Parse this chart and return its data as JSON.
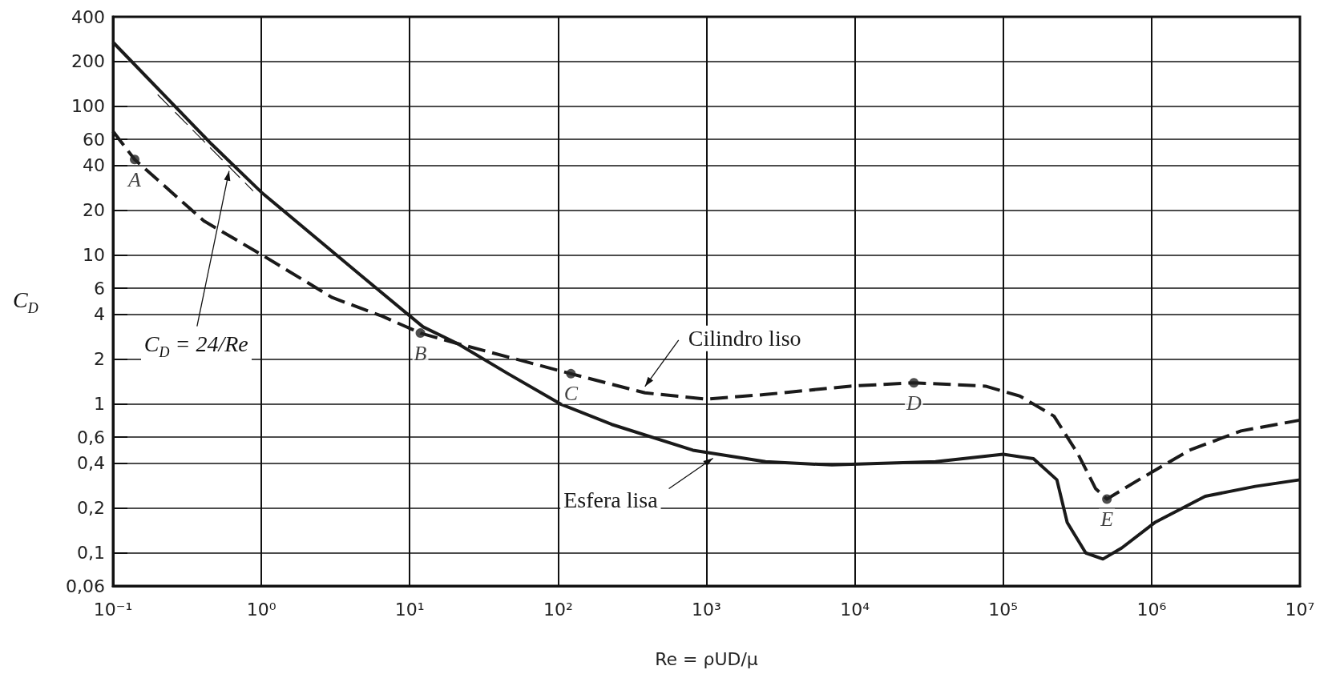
{
  "chart_data": {
    "type": "line",
    "xlabel": "Re = ρUD/μ",
    "ylabel": "C$_{D}$",
    "log": "xy",
    "grid": true,
    "legend": false,
    "marker": "none",
    "xlim": [
      0.1,
      10000000
    ],
    "ylim": [
      0.06,
      400
    ],
    "xticks": [
      {
        "value": 0.1,
        "label": "10⁻¹"
      },
      {
        "value": 1,
        "label": "10⁰"
      },
      {
        "value": 10,
        "label": "10¹"
      },
      {
        "value": 100,
        "label": "10²"
      },
      {
        "value": 1000,
        "label": "10³"
      },
      {
        "value": 10000,
        "label": "10⁴"
      },
      {
        "value": 100000,
        "label": "10⁵"
      },
      {
        "value": 1000000,
        "label": "10⁶"
      },
      {
        "value": 10000000,
        "label": "10⁷"
      }
    ],
    "yticks": [
      {
        "value": 0.06,
        "label": "0,06"
      },
      {
        "value": 0.1,
        "label": "0,1"
      },
      {
        "value": 0.2,
        "label": "0,2"
      },
      {
        "value": 0.4,
        "label": "0,4"
      },
      {
        "value": 0.6,
        "label": "0,6"
      },
      1,
      2,
      4,
      6,
      10,
      20,
      40,
      60,
      100,
      200,
      400
    ],
    "series": [
      {
        "name": "Cilindro liso",
        "color": "#1a1a1a",
        "line_style": "dashed",
        "x": [
          0.1,
          0.14,
          0.41,
          1,
          3,
          6.5,
          11.8,
          21,
          122,
          385,
          1000,
          2500,
          9300,
          25000,
          76000,
          130000,
          220000,
          320000,
          420000,
          500000,
          820000,
          1800000,
          4000000,
          10000000
        ],
        "values": [
          68,
          44,
          17,
          10.1,
          5.2,
          3.9,
          3.0,
          2.55,
          1.6,
          1.19,
          1.08,
          1.16,
          1.32,
          1.39,
          1.32,
          1.13,
          0.83,
          0.46,
          0.27,
          0.23,
          0.31,
          0.49,
          0.66,
          0.78
        ]
      },
      {
        "name": "Esfera lisa",
        "color": "#1a1a1a",
        "line_style": "solid",
        "x": [
          0.1,
          0.46,
          1,
          4.7,
          12.3,
          21,
          46,
          104,
          230,
          810,
          2500,
          7000,
          35000,
          100000,
          160000,
          230000,
          270000,
          360000,
          470000,
          630000,
          1050000,
          2300000,
          5000000,
          10000000
        ],
        "values": [
          270,
          56,
          26.5,
          7.3,
          3.3,
          2.55,
          1.6,
          1.0,
          0.73,
          0.49,
          0.41,
          0.39,
          0.41,
          0.46,
          0.43,
          0.31,
          0.16,
          0.1,
          0.091,
          0.108,
          0.16,
          0.24,
          0.28,
          0.31
        ]
      },
      {
        "color": "#1a1a1a",
        "line_style": "dashed",
        "x": [
          0.2,
          0.88
        ],
        "values": [
          120,
          27
        ]
      }
    ],
    "annotations": [
      {
        "text": "A",
        "x": 0.14,
        "y": 44
      },
      {
        "text": "B",
        "x": 11.8,
        "y": 3.0
      },
      {
        "text": "C",
        "x": 122,
        "y": 1.6
      },
      {
        "text": "D",
        "x": 25000,
        "y": 1.39
      },
      {
        "text": "E",
        "x": 500000,
        "y": 0.23
      },
      "C$_{D}$ = 24/Re"
    ]
  }
}
